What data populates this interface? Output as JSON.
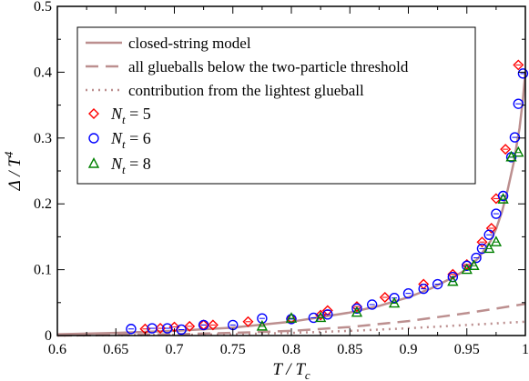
{
  "chart_data": {
    "type": "scatter",
    "xlabel": {
      "main": "T / T",
      "sub": "c"
    },
    "ylabel": {
      "main": "Δ / T",
      "sup": "4"
    },
    "xlim": [
      0.6,
      1.0
    ],
    "ylim": [
      0,
      0.5
    ],
    "x_ticks": [
      0.6,
      0.65,
      0.7,
      0.75,
      0.8,
      0.85,
      0.9,
      0.95,
      1
    ],
    "x_tick_labels": [
      "0.6",
      "0.65",
      "0.7",
      "0.75",
      "0.8",
      "0.85",
      "0.9",
      "0.95",
      "1"
    ],
    "y_ticks": [
      0,
      0.1,
      0.2,
      0.3,
      0.4,
      0.5
    ],
    "y_tick_labels": [
      "0",
      "0.1",
      "0.2",
      "0.3",
      "0.4",
      "0.5"
    ],
    "legend_position": "top-left",
    "curve_color": "#bc8f8f",
    "curves": [
      {
        "name": "closed-string model",
        "style": "solid",
        "points": [
          [
            0.6,
            0.002
          ],
          [
            0.65,
            0.004
          ],
          [
            0.7,
            0.007
          ],
          [
            0.75,
            0.012
          ],
          [
            0.8,
            0.021
          ],
          [
            0.85,
            0.035
          ],
          [
            0.875,
            0.045
          ],
          [
            0.9,
            0.058
          ],
          [
            0.92,
            0.072
          ],
          [
            0.94,
            0.09
          ],
          [
            0.95,
            0.101
          ],
          [
            0.96,
            0.118
          ],
          [
            0.97,
            0.143
          ],
          [
            0.975,
            0.162
          ],
          [
            0.98,
            0.188
          ],
          [
            0.985,
            0.222
          ],
          [
            0.99,
            0.262
          ],
          [
            0.995,
            0.315
          ],
          [
            0.998,
            0.36
          ],
          [
            1.0,
            0.4
          ]
        ]
      },
      {
        "name": "all glueballs below the two-particle threshold",
        "style": "dashed",
        "points": [
          [
            0.6,
            0.0
          ],
          [
            0.65,
            0.001
          ],
          [
            0.7,
            0.002
          ],
          [
            0.75,
            0.004
          ],
          [
            0.8,
            0.007
          ],
          [
            0.85,
            0.013
          ],
          [
            0.9,
            0.022
          ],
          [
            0.95,
            0.034
          ],
          [
            1.0,
            0.048
          ]
        ]
      },
      {
        "name": "contribution from the lightest glueball",
        "style": "dotted",
        "points": [
          [
            0.6,
            0.0
          ],
          [
            0.65,
            0.0005
          ],
          [
            0.7,
            0.001
          ],
          [
            0.75,
            0.002
          ],
          [
            0.8,
            0.004
          ],
          [
            0.85,
            0.007
          ],
          [
            0.9,
            0.011
          ],
          [
            0.95,
            0.016
          ],
          [
            1.0,
            0.021
          ]
        ]
      }
    ],
    "series": [
      {
        "name": "N_t = 5",
        "legend_main": "N",
        "legend_sub": "t",
        "legend_rest": " = 5",
        "marker": "diamond",
        "color": "#ff0000",
        "points": [
          [
            0.675,
            0.01
          ],
          [
            0.688,
            0.011
          ],
          [
            0.7,
            0.013
          ],
          [
            0.713,
            0.014
          ],
          [
            0.725,
            0.016
          ],
          [
            0.733,
            0.016
          ],
          [
            0.763,
            0.021
          ],
          [
            0.8,
            0.026
          ],
          [
            0.825,
            0.031
          ],
          [
            0.831,
            0.038
          ],
          [
            0.856,
            0.044
          ],
          [
            0.88,
            0.058
          ],
          [
            0.913,
            0.078
          ],
          [
            0.938,
            0.093
          ],
          [
            0.95,
            0.108
          ],
          [
            0.963,
            0.142
          ],
          [
            0.971,
            0.163
          ],
          [
            0.975,
            0.208
          ],
          [
            0.983,
            0.283
          ],
          [
            0.994,
            0.411
          ]
        ]
      },
      {
        "name": "N_t = 6",
        "legend_main": "N",
        "legend_sub": "t",
        "legend_rest": " = 6",
        "marker": "circle",
        "color": "#0000ff",
        "points": [
          [
            0.663,
            0.01
          ],
          [
            0.681,
            0.011
          ],
          [
            0.694,
            0.011
          ],
          [
            0.706,
            0.009
          ],
          [
            0.725,
            0.016
          ],
          [
            0.75,
            0.016
          ],
          [
            0.775,
            0.026
          ],
          [
            0.8,
            0.025
          ],
          [
            0.819,
            0.027
          ],
          [
            0.831,
            0.032
          ],
          [
            0.856,
            0.041
          ],
          [
            0.869,
            0.047
          ],
          [
            0.888,
            0.057
          ],
          [
            0.9,
            0.064
          ],
          [
            0.913,
            0.071
          ],
          [
            0.925,
            0.078
          ],
          [
            0.938,
            0.089
          ],
          [
            0.95,
            0.106
          ],
          [
            0.958,
            0.118
          ],
          [
            0.963,
            0.132
          ],
          [
            0.969,
            0.153
          ],
          [
            0.975,
            0.185
          ],
          [
            0.981,
            0.212
          ],
          [
            0.988,
            0.271
          ],
          [
            0.991,
            0.301
          ],
          [
            0.994,
            0.352
          ],
          [
            0.998,
            0.398
          ]
        ]
      },
      {
        "name": "N_t = 8",
        "legend_main": "N",
        "legend_sub": "t",
        "legend_rest": " = 8",
        "marker": "triangle",
        "color": "#008000",
        "points": [
          [
            0.775,
            0.014
          ],
          [
            0.8,
            0.026
          ],
          [
            0.825,
            0.027
          ],
          [
            0.856,
            0.035
          ],
          [
            0.888,
            0.049
          ],
          [
            0.938,
            0.082
          ],
          [
            0.95,
            0.1
          ],
          [
            0.956,
            0.106
          ],
          [
            0.969,
            0.132
          ],
          [
            0.975,
            0.142
          ],
          [
            0.981,
            0.207
          ],
          [
            0.988,
            0.271
          ],
          [
            0.994,
            0.278
          ]
        ]
      }
    ]
  }
}
